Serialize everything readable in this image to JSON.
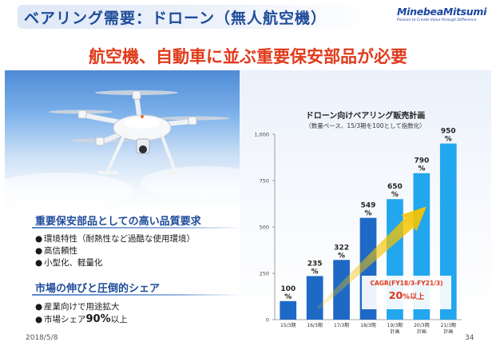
{
  "header": {
    "title": "ベアリング需要：ドローン（無人航空機）",
    "brand_name": "MinebeaMitsumi",
    "brand_tagline": "Passion to Create Value through Difference"
  },
  "headline": "航空機、自動車に並ぶ重要保安部品が必要",
  "left": {
    "section1": {
      "heading": "重要保安部品としての高い品質要求",
      "items": [
        "環境特性（耐熱性など過酷な使用環境）",
        "高信頼性",
        "小型化、軽量化"
      ]
    },
    "section2": {
      "heading": "市場の伸びと圧倒的シェア",
      "item1": "産業向けで用途拡大",
      "item2_prefix": "市場シェア",
      "item2_value": "90%",
      "item2_suffix": "以上"
    }
  },
  "bullet_glyph": "●",
  "footer": {
    "date": "2018/5/8",
    "page": "34"
  },
  "colors": {
    "title_blue": "#1f4c9a",
    "accent_red": "#e03b1c",
    "bar_dark": "#1f69c6",
    "bar_light": "#22a6ee",
    "arrow_yellow": "#f5c400"
  },
  "chart_data": {
    "type": "bar",
    "title": "ドローン向けベアリング販売計画",
    "subtitle": "（数量ベース、15/3期を100として指数化）",
    "categories": [
      [
        "15/3期"
      ],
      [
        "16/3期"
      ],
      [
        "17/3期"
      ],
      [
        "18/3期"
      ],
      [
        "19/3期",
        "計画"
      ],
      [
        "20/3期",
        "計画"
      ],
      [
        "21/3期",
        "計画"
      ]
    ],
    "values": [
      100,
      235,
      322,
      549,
      650,
      790,
      950
    ],
    "value_unit": "%",
    "bar_style": [
      "actual",
      "actual",
      "actual",
      "actual",
      "plan",
      "plan",
      "plan"
    ],
    "ylim": [
      0,
      1000
    ],
    "yticks": [
      0,
      250,
      500,
      750,
      1000
    ],
    "ytick_labels": [
      "0",
      "250",
      "500",
      "750",
      "1,000"
    ],
    "cagr_label": "CAGR(FY18/3-FY21/3)",
    "cagr_value": "20",
    "cagr_value_unit": "%",
    "cagr_value_suffix": "以上"
  }
}
